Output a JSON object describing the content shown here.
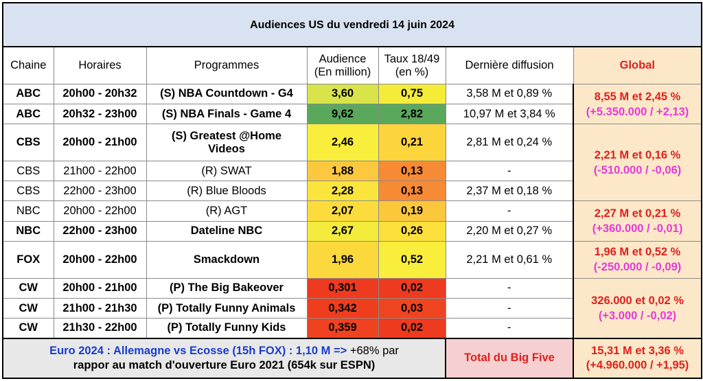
{
  "title": "Audiences US du vendredi 14 juin 2024",
  "headers": {
    "chaine": "Chaine",
    "horaires": "Horaires",
    "programmes": "Programmes",
    "audience_l1": "Audience",
    "audience_l2": "(En million)",
    "taux_l1": "Taux 18/49",
    "taux_l2": "(en %)",
    "derniere": "Dernière diffusion",
    "global": "Global"
  },
  "rows": [
    {
      "chaine": "ABC",
      "horaires": "20h00 - 20h32",
      "programme": "(S) NBA Countdown - G4",
      "audience": "3,60",
      "taux": "0,75",
      "derniere": "3,58 M et 0,89 %",
      "aud_color": "#d9e44a",
      "taux_color": "#f5ec3a"
    },
    {
      "chaine": "ABC",
      "horaires": "20h32 - 23h00",
      "programme": "(S) NBA Finals - Game 4",
      "audience": "9,62",
      "taux": "2,82",
      "derniere": "10,97 M et 3,84 %",
      "aud_color": "#5aa85c",
      "taux_color": "#5aa85c"
    },
    {
      "chaine": "CBS",
      "horaires": "20h00 - 21h00",
      "programme_l1": "(S) Greatest @Home",
      "programme_l2": "Videos",
      "audience": "2,46",
      "taux": "0,21",
      "derniere": "2,81 M et 0,24 %",
      "aud_color": "#f9ee3c",
      "taux_color": "#fcd43c"
    },
    {
      "chaine": "CBS",
      "horaires": "21h00 - 22h00",
      "programme": "(R) SWAT",
      "audience": "1,88",
      "taux": "0,13",
      "derniere": "-",
      "aud_color": "#fcc840",
      "taux_color": "#f78a34"
    },
    {
      "chaine": "CBS",
      "horaires": "22h00 - 23h00",
      "programme": "(R) Blue Bloods",
      "audience": "2,28",
      "taux": "0,13",
      "derniere": "2,37 M et 0,18 %",
      "aud_color": "#fbe43c",
      "taux_color": "#f78a34"
    },
    {
      "chaine": "NBC",
      "horaires": "20h00 - 22h00",
      "programme": "(R) AGT",
      "audience": "2,07",
      "taux": "0,19",
      "derniere": "-",
      "aud_color": "#fbdc3c",
      "taux_color": "#fbc83c"
    },
    {
      "chaine": "NBC",
      "horaires": "22h00 - 23h00",
      "programme": "Dateline NBC",
      "audience": "2,67",
      "taux": "0,26",
      "derniere": "2,20 M et 0,27 %",
      "aud_color": "#f3ec3c",
      "taux_color": "#fde03c"
    },
    {
      "chaine": "FOX",
      "horaires": "20h00 - 22h00",
      "programme": "Smackdown",
      "audience": "1,96",
      "taux": "0,52",
      "derniere": "2,21 M et 0,61 %",
      "aud_color": "#fbd83c",
      "taux_color": "#f9ee3c"
    },
    {
      "chaine": "CW",
      "horaires": "20h00 - 21h00",
      "programme": "(P) The Big Bakeover",
      "audience": "0,301",
      "taux": "0,02",
      "derniere": "-",
      "aud_color": "#ee3a1e",
      "taux_color": "#ee3a1e"
    },
    {
      "chaine": "CW",
      "horaires": "21h00 - 21h30",
      "programme": "(P) Totally Funny Animals",
      "audience": "0,342",
      "taux": "0,03",
      "derniere": "-",
      "aud_color": "#ee3e1e",
      "taux_color": "#ef4420"
    },
    {
      "chaine": "CW",
      "horaires": "21h30 - 22h00",
      "programme": "(P) Totally Funny Kids",
      "audience": "0,359",
      "taux": "0,02",
      "derniere": "-",
      "aud_color": "#ef4220",
      "taux_color": "#ee3a1e"
    }
  ],
  "global": {
    "abc_l1": "8,55 M et 2,45 %",
    "abc_l2": "(+5.350.000 / +2,13)",
    "cbs_l1": "2,21 M et 0,16 %",
    "cbs_l2": "(-510.000 / -0,06)",
    "nbc_l1": "2,27 M et 0,21 %",
    "nbc_l2": "(+360.000 / -0,01)",
    "fox_l1": "1,96 M et 0,52 %",
    "fox_l2": "(-250.000 / -0,09)",
    "cw_l1": "326.000 et 0,02 %",
    "cw_l2": "(+3.000 / -0,02)"
  },
  "footer": {
    "euro_text": "Euro 2024 : Allemagne vs Ecosse (15h FOX) : 1,10 M =>",
    "euro_pct": "+68% par",
    "euro_l2": "rappor au match d'ouverture Euro 2021 (654k sur ESPN)",
    "total_label": "Total du Big Five",
    "total_l1": "15,31 M et 3,36 %",
    "total_l2": "(+4.960.000 / +1,95)"
  }
}
